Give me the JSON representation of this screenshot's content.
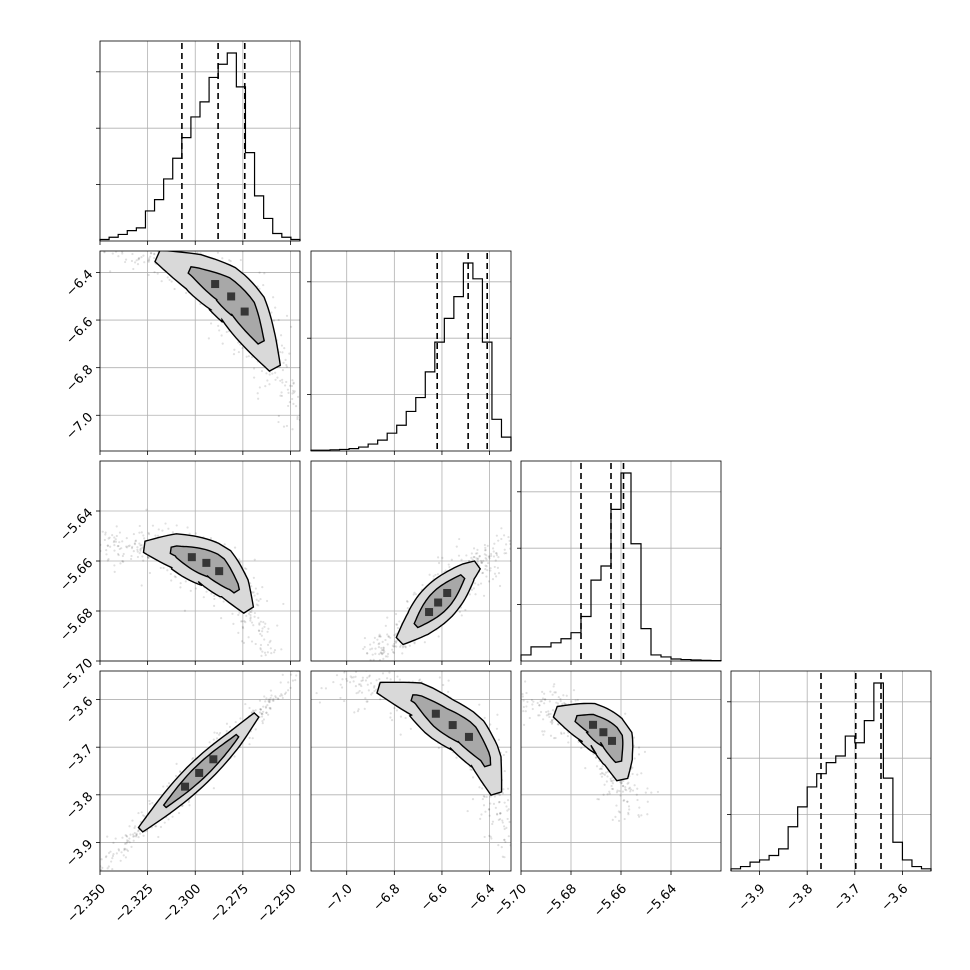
{
  "chart_data": {
    "type": "corner",
    "title": "",
    "grid": true,
    "parameters": [
      {
        "range": [
          -2.35,
          -2.245
        ],
        "ticks": [
          -2.35,
          -2.325,
          -2.3,
          -2.275,
          -2.25
        ],
        "tick_labels": [
          "−2.350",
          "−2.325",
          "−2.300",
          "−2.275",
          "−2.250"
        ],
        "quantiles": [
          -2.307,
          -2.288,
          -2.274
        ],
        "hist": [
          0.008,
          0.02,
          0.035,
          0.055,
          0.07,
          0.16,
          0.22,
          0.33,
          0.44,
          0.55,
          0.66,
          0.74,
          0.87,
          0.94,
          1.0,
          0.82,
          0.47,
          0.24,
          0.12,
          0.04,
          0.02,
          0.008
        ]
      },
      {
        "range": [
          -7.15,
          -6.31
        ],
        "ticks": [
          -7.0,
          -6.8,
          -6.6,
          -6.4
        ],
        "tick_labels": [
          "−7.0",
          "−6.8",
          "−6.6",
          "−6.4"
        ],
        "quantiles": [
          -6.62,
          -6.49,
          -6.41
        ],
        "hist": [
          0.004,
          0.004,
          0.006,
          0.008,
          0.012,
          0.02,
          0.035,
          0.055,
          0.09,
          0.13,
          0.2,
          0.27,
          0.4,
          0.55,
          0.67,
          0.78,
          0.95,
          0.87,
          0.55,
          0.16,
          0.07
        ]
      },
      {
        "range": [
          -5.7,
          -5.62
        ],
        "ticks": [
          -5.7,
          -5.68,
          -5.66,
          -5.64
        ],
        "tick_labels": [
          "−5.70",
          "−5.68",
          "−5.66",
          "−5.64"
        ],
        "quantiles": [
          -5.676,
          -5.664,
          -5.659
        ],
        "hist": [
          0.03,
          0.07,
          0.07,
          0.09,
          0.11,
          0.14,
          0.22,
          0.4,
          0.47,
          0.75,
          0.93,
          0.58,
          0.16,
          0.03,
          0.02,
          0.01,
          0.007,
          0.005,
          0.003,
          0.002
        ]
      },
      {
        "range": [
          -3.96,
          -3.54
        ],
        "ticks": [
          -3.9,
          -3.8,
          -3.7,
          -3.6
        ],
        "tick_labels": [
          "−3.9",
          "−3.8",
          "−3.7",
          "−3.6"
        ],
        "quantiles": [
          -3.771,
          -3.698,
          -3.645
        ],
        "hist": [
          0.01,
          0.02,
          0.04,
          0.05,
          0.07,
          0.1,
          0.2,
          0.29,
          0.38,
          0.44,
          0.49,
          0.52,
          0.61,
          0.58,
          0.68,
          0.85,
          0.42,
          0.13,
          0.05,
          0.02,
          0.01
        ]
      }
    ],
    "pairs": [
      {
        "x": 0,
        "y": 1,
        "ridge": [
          [
            -2.35,
            -6.29
          ],
          [
            -2.32,
            -6.33
          ],
          [
            -2.3,
            -6.4
          ],
          [
            -2.285,
            -6.47
          ],
          [
            -2.275,
            -6.55
          ],
          [
            -2.265,
            -6.7
          ],
          [
            -2.255,
            -6.85
          ],
          [
            -2.245,
            -7.05
          ]
        ],
        "spread": 0.04
      },
      {
        "x": 0,
        "y": 2,
        "ridge": [
          [
            -2.35,
            -5.652
          ],
          [
            -2.31,
            -5.656
          ],
          [
            -2.29,
            -5.662
          ],
          [
            -2.28,
            -5.67
          ],
          [
            -2.27,
            -5.682
          ],
          [
            -2.26,
            -5.697
          ]
        ],
        "spread": 0.0035
      },
      {
        "x": 1,
        "y": 2,
        "ridge": [
          [
            -6.92,
            -5.698
          ],
          [
            -6.8,
            -5.694
          ],
          [
            -6.7,
            -5.685
          ],
          [
            -6.6,
            -5.675
          ],
          [
            -6.5,
            -5.665
          ],
          [
            -6.4,
            -5.658
          ],
          [
            -6.31,
            -5.652
          ]
        ],
        "spread": 0.003
      },
      {
        "x": 0,
        "y": 3,
        "ridge": [
          [
            -2.35,
            -3.955
          ],
          [
            -2.32,
            -3.84
          ],
          [
            -2.3,
            -3.762
          ],
          [
            -2.28,
            -3.685
          ],
          [
            -2.265,
            -3.62
          ],
          [
            -2.245,
            -3.54
          ]
        ],
        "spread": 0.01
      },
      {
        "x": 1,
        "y": 3,
        "ridge": [
          [
            -7.1,
            -3.54
          ],
          [
            -6.9,
            -3.57
          ],
          [
            -6.7,
            -3.6
          ],
          [
            -6.6,
            -3.64
          ],
          [
            -6.5,
            -3.67
          ],
          [
            -6.42,
            -3.72
          ],
          [
            -6.37,
            -3.8
          ],
          [
            -6.33,
            -3.93
          ]
        ],
        "spread": 0.018
      },
      {
        "x": 2,
        "y": 3,
        "ridge": [
          [
            -5.7,
            -3.6
          ],
          [
            -5.685,
            -3.628
          ],
          [
            -5.672,
            -3.65
          ],
          [
            -5.664,
            -3.68
          ],
          [
            -5.661,
            -3.73
          ],
          [
            -5.659,
            -3.78
          ],
          [
            -5.656,
            -3.85
          ]
        ],
        "spread": 0.018
      }
    ]
  }
}
